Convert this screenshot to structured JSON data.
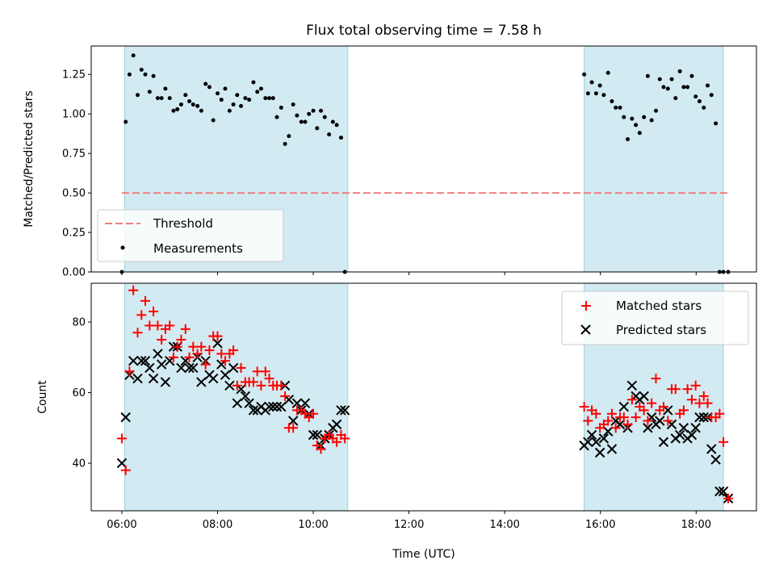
{
  "chart_data": [
    {
      "type": "scatter",
      "title": "Flux total observing time = 7.58 h",
      "xlabel": "",
      "ylabel": "Matched/Predicted stars",
      "ylim": [
        0,
        1.43
      ],
      "xlim": [
        5.36,
        19.26
      ],
      "yticks": [
        "0.00",
        "0.25",
        "0.50",
        "0.75",
        "1.00",
        "1.25"
      ],
      "ytick_values": [
        0,
        0.25,
        0.5,
        0.75,
        1.0,
        1.25
      ],
      "grid": false,
      "legend_position": "lower-left",
      "observing_windows": [
        [
          6.06,
          10.72
        ],
        [
          15.66,
          18.57
        ]
      ],
      "window_color": "#add8e6",
      "threshold": {
        "name": "Threshold",
        "value": 0.5,
        "x_range": [
          6.0,
          18.67
        ],
        "color": "#f08080"
      },
      "series": [
        {
          "name": "Measurements",
          "color": "#000000",
          "x": [
            6.0,
            6.08,
            6.16,
            6.24,
            6.33,
            6.41,
            6.49,
            6.58,
            6.66,
            6.75,
            6.83,
            6.91,
            7.0,
            7.08,
            7.16,
            7.24,
            7.33,
            7.41,
            7.49,
            7.58,
            7.66,
            7.75,
            7.83,
            7.91,
            8.0,
            8.08,
            8.16,
            8.25,
            8.33,
            8.41,
            8.49,
            8.58,
            8.66,
            8.75,
            8.83,
            8.91,
            9.0,
            9.08,
            9.16,
            9.24,
            9.33,
            9.41,
            9.49,
            9.58,
            9.66,
            9.75,
            9.83,
            9.91,
            10.0,
            10.08,
            10.16,
            10.24,
            10.33,
            10.41,
            10.49,
            10.58,
            10.66,
            15.66,
            15.74,
            15.82,
            15.91,
            15.99,
            16.07,
            16.16,
            16.24,
            16.32,
            16.41,
            16.49,
            16.57,
            16.66,
            16.74,
            16.82,
            16.91,
            16.99,
            17.07,
            17.16,
            17.24,
            17.32,
            17.41,
            17.49,
            17.57,
            17.66,
            17.74,
            17.82,
            17.91,
            17.99,
            18.07,
            18.16,
            18.24,
            18.32,
            18.41,
            18.49,
            18.57,
            18.67
          ],
          "y": [
            0.0,
            0.95,
            1.25,
            1.37,
            1.12,
            1.28,
            1.25,
            1.14,
            1.24,
            1.1,
            1.1,
            1.16,
            1.1,
            1.02,
            1.03,
            1.06,
            1.12,
            1.08,
            1.06,
            1.05,
            1.02,
            1.19,
            1.17,
            0.96,
            1.13,
            1.09,
            1.16,
            1.02,
            1.06,
            1.12,
            1.05,
            1.1,
            1.09,
            1.2,
            1.14,
            1.16,
            1.1,
            1.1,
            1.1,
            0.98,
            1.04,
            0.81,
            0.86,
            1.06,
            0.99,
            0.95,
            0.95,
            1.0,
            1.02,
            0.91,
            1.02,
            0.98,
            0.87,
            0.95,
            0.93,
            0.85,
            0.0,
            1.25,
            1.13,
            1.2,
            1.13,
            1.18,
            1.12,
            1.26,
            1.08,
            1.04,
            1.04,
            0.98,
            0.84,
            0.97,
            0.93,
            0.88,
            0.98,
            1.24,
            0.96,
            1.02,
            1.22,
            1.17,
            1.16,
            1.22,
            1.1,
            1.27,
            1.17,
            1.17,
            1.24,
            1.11,
            1.08,
            1.04,
            1.18,
            1.12,
            0.94,
            0.0,
            0.0,
            0.0
          ]
        }
      ]
    },
    {
      "type": "scatter",
      "title": "",
      "xlabel": "Time (UTC)",
      "ylabel": "Count",
      "ylim": [
        26.5,
        91
      ],
      "xlim": [
        5.36,
        19.26
      ],
      "xticks": [
        "06:00",
        "08:00",
        "10:00",
        "12:00",
        "14:00",
        "16:00",
        "18:00"
      ],
      "xtick_values": [
        6,
        8,
        10,
        12,
        14,
        16,
        18
      ],
      "yticks": [
        "40",
        "60",
        "80"
      ],
      "ytick_values": [
        40,
        60,
        80
      ],
      "grid": false,
      "legend_position": "top-right",
      "observing_windows": [
        [
          6.06,
          10.72
        ],
        [
          15.66,
          18.57
        ]
      ],
      "window_color": "#add8e6",
      "series": [
        {
          "name": "Matched stars",
          "marker": "plus",
          "color": "#ff0000",
          "x": [
            6.0,
            6.08,
            6.16,
            6.24,
            6.33,
            6.41,
            6.49,
            6.58,
            6.66,
            6.75,
            6.83,
            6.91,
            7.0,
            7.08,
            7.16,
            7.24,
            7.33,
            7.41,
            7.49,
            7.58,
            7.66,
            7.75,
            7.83,
            7.91,
            8.0,
            8.08,
            8.16,
            8.25,
            8.33,
            8.41,
            8.49,
            8.58,
            8.66,
            8.75,
            8.83,
            8.91,
            9.0,
            9.08,
            9.16,
            9.24,
            9.33,
            9.41,
            9.49,
            9.58,
            9.66,
            9.75,
            9.83,
            9.91,
            10.0,
            10.08,
            10.16,
            10.24,
            10.33,
            10.41,
            10.49,
            10.58,
            10.66,
            15.66,
            15.74,
            15.82,
            15.91,
            15.99,
            16.07,
            16.16,
            16.24,
            16.32,
            16.41,
            16.49,
            16.57,
            16.66,
            16.74,
            16.82,
            16.91,
            16.99,
            17.07,
            17.16,
            17.24,
            17.32,
            17.41,
            17.49,
            17.57,
            17.66,
            17.74,
            17.82,
            17.91,
            17.99,
            18.07,
            18.16,
            18.24,
            18.32,
            18.41,
            18.49,
            18.57,
            18.67
          ],
          "y": [
            47,
            38,
            66,
            89,
            77,
            82,
            86,
            79,
            83,
            79,
            75,
            78,
            79,
            70,
            73,
            75,
            78,
            70,
            73,
            71,
            73,
            68,
            72,
            76,
            76,
            71,
            69,
            71,
            72,
            62,
            67,
            63,
            63,
            63,
            66,
            62,
            66,
            64,
            62,
            62,
            62,
            59,
            50,
            50,
            55,
            55,
            54,
            53,
            54,
            45,
            44,
            47,
            48,
            47,
            46,
            48,
            47,
            56,
            52,
            55,
            54,
            50,
            51,
            52,
            54,
            50,
            53,
            53,
            51,
            58,
            53,
            56,
            55,
            52,
            57,
            64,
            55,
            56,
            52,
            61,
            61,
            54,
            55,
            61,
            58,
            62,
            57,
            59,
            57,
            53,
            53,
            54,
            46,
            30
          ]
        },
        {
          "name": "Predicted stars",
          "marker": "x",
          "color": "#000000",
          "x": [
            6.0,
            6.08,
            6.16,
            6.24,
            6.33,
            6.41,
            6.49,
            6.58,
            6.66,
            6.75,
            6.83,
            6.91,
            7.0,
            7.08,
            7.16,
            7.24,
            7.33,
            7.41,
            7.49,
            7.58,
            7.66,
            7.75,
            7.83,
            7.91,
            8.0,
            8.08,
            8.16,
            8.25,
            8.33,
            8.41,
            8.49,
            8.58,
            8.66,
            8.75,
            8.83,
            8.91,
            9.0,
            9.08,
            9.16,
            9.24,
            9.33,
            9.41,
            9.49,
            9.58,
            9.66,
            9.75,
            9.83,
            9.91,
            10.0,
            10.08,
            10.16,
            10.24,
            10.33,
            10.41,
            10.49,
            10.58,
            10.66,
            15.66,
            15.74,
            15.82,
            15.91,
            15.99,
            16.07,
            16.16,
            16.24,
            16.32,
            16.41,
            16.49,
            16.57,
            16.66,
            16.74,
            16.82,
            16.91,
            16.99,
            17.07,
            17.16,
            17.24,
            17.32,
            17.41,
            17.49,
            17.57,
            17.66,
            17.74,
            17.82,
            17.91,
            17.99,
            18.07,
            18.16,
            18.24,
            18.32,
            18.41,
            18.49,
            18.57,
            18.67
          ],
          "y": [
            40,
            53,
            65,
            69,
            64,
            69,
            69,
            67,
            64,
            71,
            68,
            63,
            69,
            73,
            73,
            67,
            69,
            67,
            67,
            70,
            63,
            69,
            65,
            64,
            74,
            68,
            65,
            62,
            67,
            57,
            61,
            59,
            57,
            55,
            55,
            56,
            55,
            56,
            56,
            56,
            56,
            62,
            58,
            52,
            57,
            55,
            57,
            54,
            48,
            48,
            45,
            47,
            48,
            50,
            51,
            55,
            55,
            45,
            46,
            48,
            46,
            43,
            47,
            49,
            44,
            52,
            51,
            56,
            50,
            62,
            59,
            58,
            59,
            50,
            53,
            51,
            52,
            46,
            55,
            51,
            47,
            48,
            50,
            47,
            48,
            50,
            53,
            53,
            53,
            44,
            41,
            32,
            32,
            30
          ]
        }
      ]
    }
  ]
}
